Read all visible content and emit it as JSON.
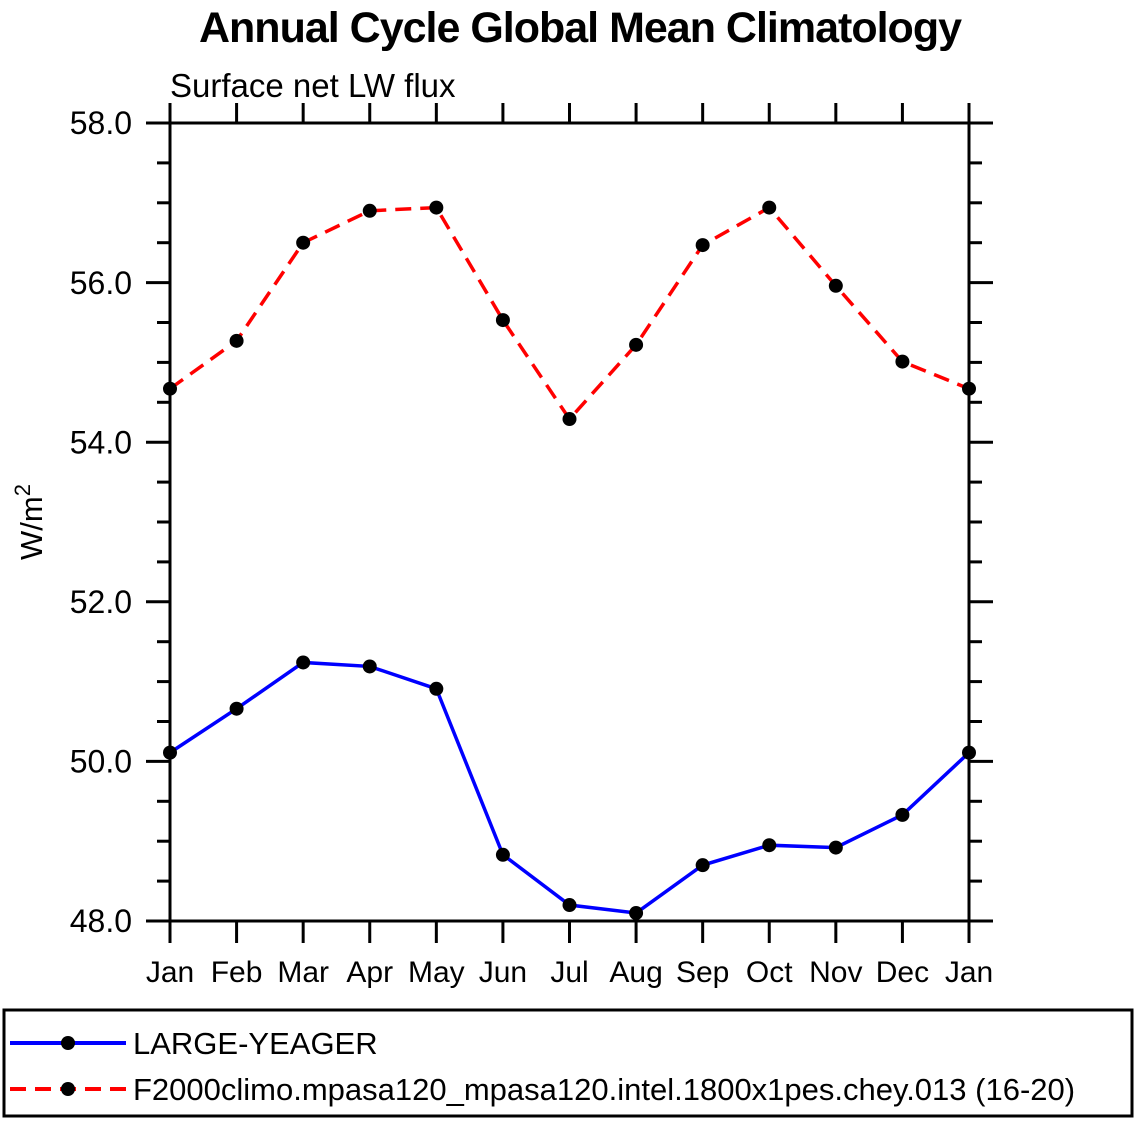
{
  "chart_data": {
    "type": "line",
    "title": "Annual Cycle Global Mean Climatology",
    "subtitle": "Surface net LW flux",
    "ylabel": "W/m²",
    "xlabel": "",
    "categories": [
      "Jan",
      "Feb",
      "Mar",
      "Apr",
      "May",
      "Jun",
      "Jul",
      "Aug",
      "Sep",
      "Oct",
      "Nov",
      "Dec",
      "Jan"
    ],
    "ylim": [
      48.0,
      58.0
    ],
    "ytick_major_step": 2.0,
    "ytick_minor_step": 0.5,
    "ytick_labels": [
      "48.0",
      "50.0",
      "52.0",
      "54.0",
      "56.0",
      "58.0"
    ],
    "grid": false,
    "legend_position": "bottom-box",
    "axis_color": "#000000",
    "marker_color": "#000000",
    "series": [
      {
        "name": "LARGE-YEAGER",
        "color": "#0000ff",
        "line_style": "solid",
        "marker": "filled-circle",
        "values": [
          50.11,
          50.66,
          51.24,
          51.19,
          50.91,
          48.83,
          48.2,
          48.1,
          48.7,
          48.95,
          48.92,
          49.33,
          50.11
        ]
      },
      {
        "name": "F2000climo.mpasa120_mpasa120.intel.1800x1pes.chey.013 (16-20)",
        "color": "#ff0000",
        "line_style": "dashed",
        "marker": "filled-circle",
        "values": [
          54.67,
          55.27,
          56.5,
          56.9,
          56.94,
          55.53,
          54.29,
          55.22,
          56.47,
          56.94,
          55.96,
          55.01,
          54.67
        ]
      }
    ]
  }
}
